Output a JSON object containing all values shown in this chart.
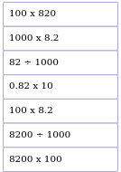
{
  "labels": [
    "100 x 820",
    "1000 x 8.2",
    "82 ÷ 1000",
    "0.82 x 10",
    "100 x 8.2",
    "8200 ÷ 1000",
    "8200 x 100"
  ],
  "background_color": "#ffffff",
  "box_face_color": "#ffffff",
  "box_edge_color": "#aaaacc",
  "text_color": "#000000",
  "font_size": 7.5,
  "fig_width": 1.34,
  "fig_height": 1.9,
  "dpi": 100
}
